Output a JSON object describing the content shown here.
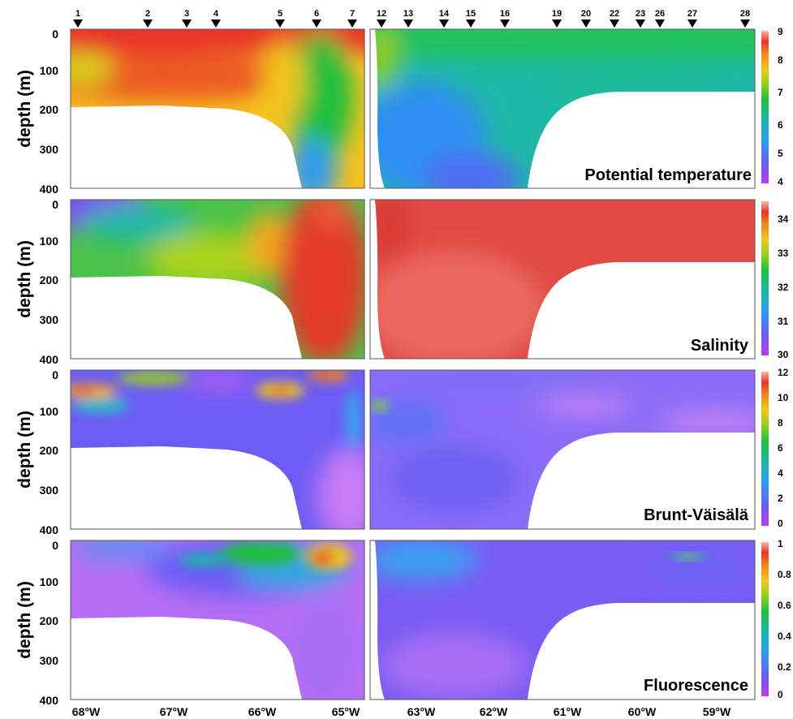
{
  "chart_data": {
    "type": "heatmap",
    "x_ticks": [
      "68°W",
      "67°W",
      "66°W",
      "65°W",
      "63°W",
      "62°W",
      "61°W",
      "60°W",
      "59°W"
    ],
    "y_ticks": [
      "0",
      "100",
      "200",
      "300",
      "400"
    ],
    "ylabel": "depth (m)",
    "stations": [
      {
        "id": "1",
        "lon": -68.05
      },
      {
        "id": "2",
        "lon": -67.15
      },
      {
        "id": "3",
        "lon": -66.8
      },
      {
        "id": "4",
        "lon": -66.4
      },
      {
        "id": "5",
        "lon": -65.75
      },
      {
        "id": "6",
        "lon": -65.3
      },
      {
        "id": "7",
        "lon": -64.85
      },
      {
        "id": "12",
        "lon": -63.6
      },
      {
        "id": "13",
        "lon": -63.25
      },
      {
        "id": "14",
        "lon": -62.7
      },
      {
        "id": "15",
        "lon": -62.35
      },
      {
        "id": "16",
        "lon": -61.85
      },
      {
        "id": "19",
        "lon": -61.15
      },
      {
        "id": "20",
        "lon": -60.75
      },
      {
        "id": "22",
        "lon": -60.35
      },
      {
        "id": "23",
        "lon": -60.0
      },
      {
        "id": "26",
        "lon": -59.75
      },
      {
        "id": "27",
        "lon": -59.3
      },
      {
        "id": "28",
        "lon": -58.6
      }
    ],
    "panels": [
      {
        "title": "Potential temperature",
        "colorbar_ticks": [
          "9",
          "8",
          "7",
          "6",
          "5",
          "4"
        ]
      },
      {
        "title": "Salinity",
        "colorbar_ticks": [
          "34",
          "33",
          "32",
          "31",
          "30"
        ]
      },
      {
        "title": "Brunt-Väisälä",
        "colorbar_ticks": [
          "12",
          "10",
          "8",
          "6",
          "4",
          "2",
          "0"
        ]
      },
      {
        "title": "Fluorescence",
        "colorbar_ticks": [
          "1",
          "0.8",
          "0.6",
          "0.4",
          "0.2",
          "0"
        ]
      }
    ]
  }
}
